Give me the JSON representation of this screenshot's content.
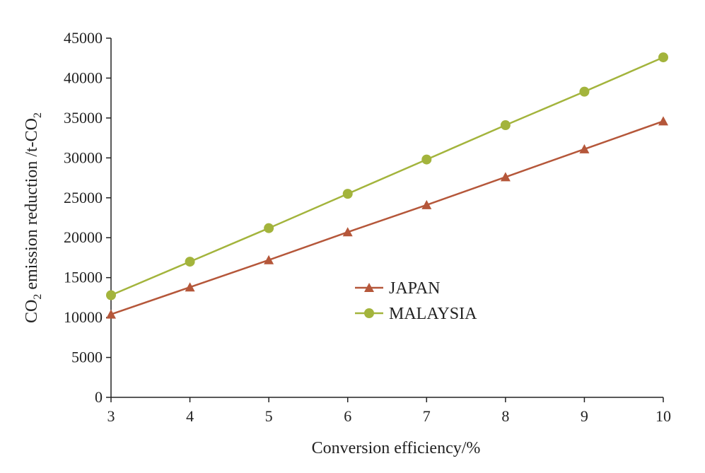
{
  "chart_data": {
    "type": "line",
    "title": "",
    "xlabel": "Conversion efficiency/%",
    "ylabel": {
      "p1": "CO",
      "s1": "2",
      "p2": " emission reduction /t-CO",
      "s2": "2"
    },
    "x": [
      3,
      4,
      5,
      6,
      7,
      8,
      9,
      10
    ],
    "xlim": [
      3,
      10
    ],
    "ylim": [
      0,
      45000
    ],
    "yticks": [
      0,
      5000,
      10000,
      15000,
      20000,
      25000,
      30000,
      35000,
      40000,
      45000
    ],
    "grid": false,
    "legend_position": "center-right",
    "series": [
      {
        "name": "JAPAN",
        "color": "#b5573a",
        "marker": "triangle",
        "values": [
          10400,
          13800,
          17200,
          20700,
          24100,
          27600,
          31100,
          34600
        ]
      },
      {
        "name": "MALAYSIA",
        "color": "#a3b43c",
        "marker": "circle",
        "values": [
          12800,
          17000,
          21200,
          25500,
          29800,
          34100,
          38300,
          42600
        ]
      }
    ]
  }
}
